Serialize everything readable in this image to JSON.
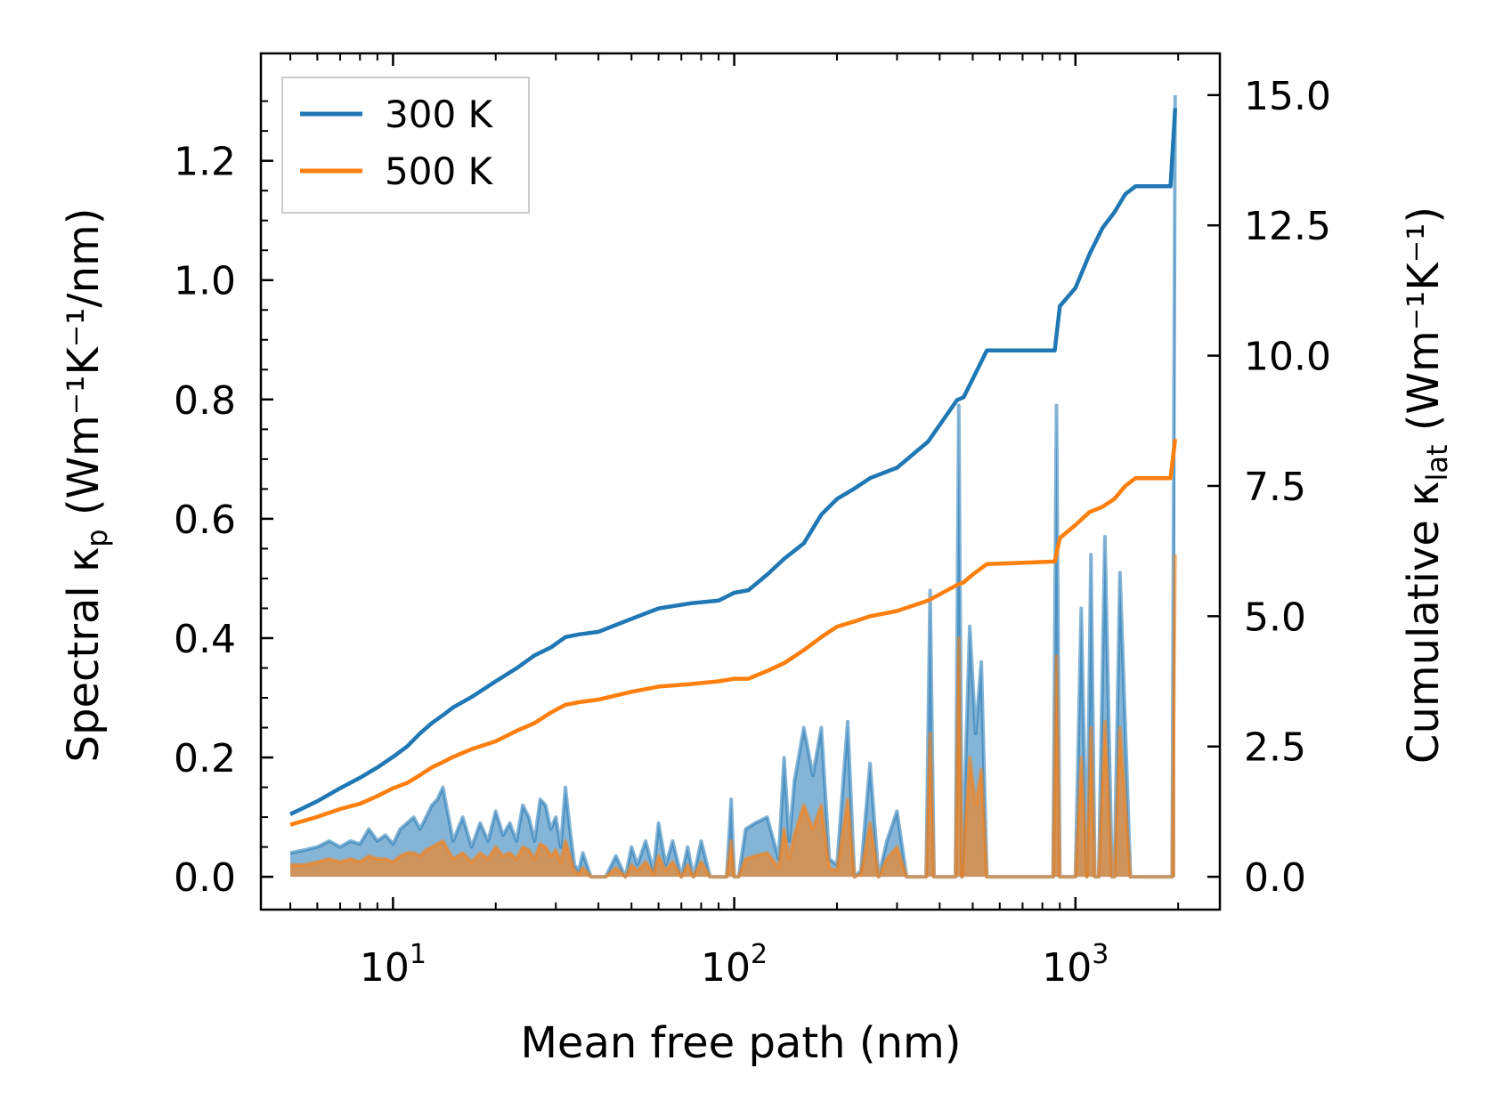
{
  "chart_data": {
    "type": "line",
    "title": "",
    "xlabel": "Mean free path (nm)",
    "ylabel_left": {
      "text": "Spectral κ",
      "sub": "p",
      "units": " (Wm⁻¹K⁻¹/nm)"
    },
    "ylabel_right": {
      "text": "Cumulative κ",
      "sub": "lat",
      "units": " (Wm⁻¹K⁻¹)"
    },
    "x_scale": "log",
    "xlim": [
      4.1,
      2650
    ],
    "ylim_left": [
      -0.055,
      1.38
    ],
    "ylim_right": [
      -0.63,
      15.8
    ],
    "x_ticks": [
      {
        "value": 10,
        "base": "10",
        "exp": "1"
      },
      {
        "value": 100,
        "base": "10",
        "exp": "2"
      },
      {
        "value": 1000,
        "base": "10",
        "exp": "3"
      }
    ],
    "y_ticks_left": [
      "0.0",
      "0.2",
      "0.4",
      "0.6",
      "0.8",
      "1.0",
      "1.2"
    ],
    "y_ticks_right": [
      "0.0",
      "2.5",
      "5.0",
      "7.5",
      "10.0",
      "12.5",
      "15.0"
    ],
    "legend": {
      "position": "top-left",
      "entries": [
        {
          "label": "300 K",
          "color": "#1f77b4"
        },
        {
          "label": "500 K",
          "color": "#ff7f0e"
        }
      ]
    },
    "series": [
      {
        "name": "300 K",
        "color": "#1f77b4",
        "cumulative": {
          "axis": "right",
          "x": [
            5,
            6,
            7,
            8,
            9,
            10,
            11,
            12,
            13,
            14,
            15,
            17,
            20,
            23,
            26,
            29,
            32,
            35,
            40,
            50,
            60,
            75,
            90,
            100,
            110,
            125,
            140,
            160,
            180,
            200,
            225,
            250,
            300,
            370,
            450,
            470,
            500,
            550,
            870,
            900,
            1000,
            1100,
            1200,
            1300,
            1400,
            1500,
            1900,
            1960
          ],
          "y": [
            1.2,
            1.45,
            1.7,
            1.9,
            2.1,
            2.3,
            2.5,
            2.75,
            2.95,
            3.1,
            3.25,
            3.45,
            3.75,
            4.0,
            4.25,
            4.4,
            4.6,
            4.65,
            4.7,
            4.95,
            5.15,
            5.25,
            5.3,
            5.45,
            5.5,
            5.8,
            6.1,
            6.4,
            6.95,
            7.25,
            7.45,
            7.65,
            7.85,
            8.35,
            9.15,
            9.2,
            9.55,
            10.1,
            10.1,
            10.95,
            11.3,
            11.95,
            12.45,
            12.75,
            13.1,
            13.25,
            13.25,
            14.75
          ]
        },
        "spectral": {
          "axis": "left",
          "x": [
            5,
            5.5,
            6,
            6.5,
            7,
            7.5,
            8,
            8.5,
            9,
            9.5,
            10,
            10.5,
            11,
            11.5,
            12,
            12.5,
            13,
            13.5,
            14,
            15,
            16,
            17,
            18,
            19,
            20,
            21,
            22,
            23,
            24,
            25,
            26,
            27,
            28,
            29,
            30,
            31,
            32,
            33,
            34,
            35,
            36,
            38,
            42,
            45,
            48,
            50,
            52,
            55,
            58,
            60,
            63,
            66,
            70,
            73,
            76,
            80,
            85,
            95,
            98,
            100,
            103,
            108,
            115,
            125,
            135,
            140,
            145,
            150,
            160,
            170,
            180,
            190,
            200,
            215,
            225,
            235,
            250,
            265,
            280,
            300,
            320,
            365,
            375,
            385,
            445,
            455,
            465,
            490,
            510,
            530,
            550,
            860,
            880,
            900,
            1000,
            1040,
            1080,
            1110,
            1140,
            1170,
            1220,
            1280,
            1300,
            1350,
            1450,
            1500,
            1560,
            1880,
            1920,
            1960
          ],
          "y": [
            0.04,
            0.045,
            0.05,
            0.06,
            0.05,
            0.06,
            0.055,
            0.08,
            0.06,
            0.07,
            0.055,
            0.08,
            0.09,
            0.1,
            0.08,
            0.1,
            0.12,
            0.13,
            0.15,
            0.06,
            0.1,
            0.05,
            0.09,
            0.06,
            0.11,
            0.07,
            0.09,
            0.06,
            0.12,
            0.1,
            0.06,
            0.13,
            0.12,
            0.08,
            0.1,
            0.05,
            0.15,
            0.08,
            0.02,
            0.01,
            0.04,
            0.0,
            0.0,
            0.035,
            0.0,
            0.05,
            0.02,
            0.06,
            0.01,
            0.09,
            0.02,
            0.06,
            0.0,
            0.05,
            0.0,
            0.06,
            0.0,
            0.0,
            0.13,
            0.0,
            0.0,
            0.08,
            0.09,
            0.1,
            0.03,
            0.2,
            0.06,
            0.16,
            0.25,
            0.17,
            0.25,
            0.03,
            0.02,
            0.26,
            0.0,
            0.01,
            0.19,
            0.0,
            0.06,
            0.11,
            0.0,
            0.0,
            0.48,
            0.0,
            0.0,
            0.79,
            0.0,
            0.42,
            0.24,
            0.36,
            0.0,
            0.0,
            0.79,
            0.0,
            0.0,
            0.45,
            0.0,
            0.54,
            0.0,
            0.0,
            0.57,
            0.0,
            0.0,
            0.51,
            0.0,
            0.0,
            0.0,
            0.0,
            0.0,
            1.31
          ]
        }
      },
      {
        "name": "500 K",
        "color": "#ff7f0e",
        "cumulative": {
          "axis": "right",
          "x": [
            5,
            6,
            7,
            8,
            9,
            10,
            11,
            12,
            13,
            14,
            15,
            17,
            20,
            23,
            26,
            29,
            32,
            35,
            40,
            50,
            60,
            75,
            90,
            100,
            110,
            125,
            140,
            160,
            180,
            200,
            225,
            250,
            300,
            370,
            450,
            470,
            500,
            550,
            870,
            900,
            1000,
            1100,
            1200,
            1300,
            1400,
            1500,
            1900,
            1960
          ],
          "y": [
            1.0,
            1.15,
            1.3,
            1.4,
            1.55,
            1.7,
            1.8,
            1.95,
            2.1,
            2.2,
            2.3,
            2.45,
            2.6,
            2.8,
            2.95,
            3.15,
            3.3,
            3.35,
            3.4,
            3.55,
            3.65,
            3.7,
            3.75,
            3.8,
            3.8,
            3.95,
            4.1,
            4.35,
            4.6,
            4.8,
            4.9,
            5.0,
            5.1,
            5.3,
            5.6,
            5.65,
            5.8,
            6.0,
            6.05,
            6.5,
            6.75,
            7.0,
            7.1,
            7.25,
            7.5,
            7.65,
            7.65,
            8.4
          ]
        },
        "spectral": {
          "axis": "left",
          "x": [
            5,
            5.5,
            6,
            6.5,
            7,
            7.5,
            8,
            8.5,
            9,
            9.5,
            10,
            10.5,
            11,
            11.5,
            12,
            12.5,
            13,
            13.5,
            14,
            15,
            16,
            17,
            18,
            19,
            20,
            21,
            22,
            23,
            24,
            25,
            26,
            27,
            28,
            29,
            30,
            31,
            32,
            33,
            34,
            35,
            36,
            38,
            42,
            45,
            48,
            50,
            52,
            55,
            58,
            60,
            63,
            66,
            70,
            73,
            76,
            80,
            85,
            95,
            98,
            100,
            103,
            108,
            115,
            125,
            135,
            140,
            145,
            150,
            160,
            170,
            180,
            190,
            200,
            215,
            225,
            235,
            250,
            265,
            280,
            300,
            320,
            365,
            375,
            385,
            445,
            455,
            465,
            490,
            510,
            530,
            550,
            860,
            880,
            900,
            1000,
            1040,
            1080,
            1110,
            1140,
            1170,
            1220,
            1280,
            1300,
            1350,
            1450,
            1500,
            1560,
            1880,
            1920,
            1960
          ],
          "y": [
            0.02,
            0.02,
            0.025,
            0.03,
            0.025,
            0.03,
            0.025,
            0.035,
            0.03,
            0.03,
            0.025,
            0.035,
            0.04,
            0.04,
            0.035,
            0.045,
            0.05,
            0.055,
            0.06,
            0.03,
            0.04,
            0.025,
            0.04,
            0.03,
            0.05,
            0.035,
            0.04,
            0.03,
            0.05,
            0.045,
            0.03,
            0.055,
            0.05,
            0.035,
            0.045,
            0.025,
            0.06,
            0.035,
            0.01,
            0.005,
            0.015,
            0.0,
            0.0,
            0.015,
            0.0,
            0.02,
            0.01,
            0.025,
            0.005,
            0.035,
            0.01,
            0.025,
            0.0,
            0.02,
            0.0,
            0.025,
            0.0,
            0.0,
            0.06,
            0.0,
            0.0,
            0.03,
            0.035,
            0.04,
            0.015,
            0.08,
            0.03,
            0.07,
            0.12,
            0.08,
            0.12,
            0.015,
            0.01,
            0.13,
            0.0,
            0.005,
            0.09,
            0.0,
            0.03,
            0.05,
            0.0,
            0.0,
            0.24,
            0.0,
            0.0,
            0.4,
            0.0,
            0.2,
            0.12,
            0.18,
            0.0,
            0.0,
            0.37,
            0.0,
            0.0,
            0.2,
            0.0,
            0.25,
            0.0,
            0.0,
            0.26,
            0.0,
            0.0,
            0.25,
            0.0,
            0.0,
            0.0,
            0.0,
            0.0,
            0.54
          ]
        }
      }
    ]
  }
}
